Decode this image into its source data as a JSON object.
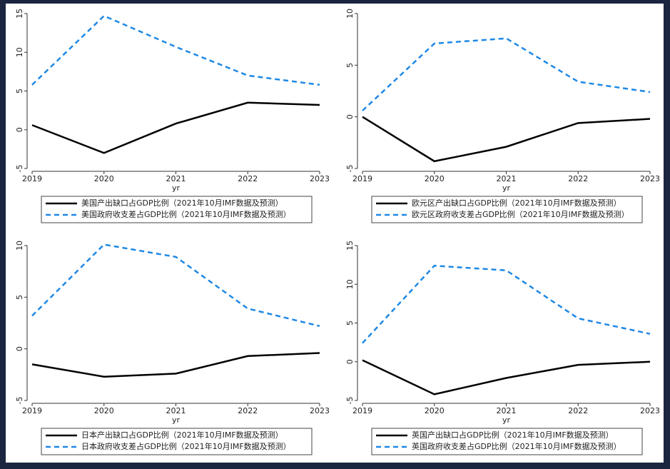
{
  "chart_data": [
    {
      "type": "line",
      "x": [
        2019,
        2020,
        2021,
        2022,
        2023
      ],
      "xlim": [
        2019,
        2023
      ],
      "xticks": [
        2019,
        2020,
        2021,
        2022,
        2023
      ],
      "xlabel": "yr",
      "ylim": [
        -5,
        15
      ],
      "yticks": [
        -5,
        0,
        5,
        10,
        15
      ],
      "series": [
        {
          "name": "美国产出缺口占GDP比例（2021年10月IMF数据及预测）",
          "color": "#000000",
          "dash": false,
          "values": [
            0.6,
            -3.0,
            0.8,
            3.5,
            3.2
          ]
        },
        {
          "name": "美国政府收支差占GDP比例（2021年10月IMF数据及预测）",
          "color": "#1e88e5",
          "dash": true,
          "values": [
            5.8,
            14.7,
            10.7,
            7.0,
            5.8
          ]
        }
      ]
    },
    {
      "type": "line",
      "x": [
        2019,
        2020,
        2021,
        2022,
        2023
      ],
      "xlim": [
        2019,
        2023
      ],
      "xticks": [
        2019,
        2020,
        2021,
        2022,
        2023
      ],
      "xlabel": "yr",
      "ylim": [
        -5,
        10
      ],
      "yticks": [
        -5,
        0,
        5,
        10
      ],
      "series": [
        {
          "name": "欧元区产出缺口占GDP比例（2021年10月IMF数据及预测）",
          "color": "#000000",
          "dash": false,
          "values": [
            0,
            -4.3,
            -2.9,
            -0.6,
            -0.2
          ]
        },
        {
          "name": "欧元区政府收支差占GDP比例（2021年10月IMF数据及预测）",
          "color": "#1e88e5",
          "dash": true,
          "values": [
            0.6,
            7.1,
            7.6,
            3.4,
            2.4
          ]
        }
      ]
    },
    {
      "type": "line",
      "x": [
        2019,
        2020,
        2021,
        2022,
        2023
      ],
      "xlim": [
        2019,
        2023
      ],
      "xticks": [
        2019,
        2020,
        2021,
        2022,
        2023
      ],
      "xlabel": "yr",
      "ylim": [
        -5,
        10
      ],
      "yticks": [
        -5,
        0,
        5,
        10
      ],
      "series": [
        {
          "name": "日本产出缺口占GDP比例（2021年10月IMF数据及预测）",
          "color": "#000000",
          "dash": false,
          "values": [
            -1.5,
            -2.7,
            -2.4,
            -0.7,
            -0.4
          ]
        },
        {
          "name": "日本政府收支差占GDP比例（2021年10月IMF数据及预测）",
          "color": "#1e88e5",
          "dash": true,
          "values": [
            3.2,
            10.1,
            8.9,
            3.9,
            2.2
          ]
        }
      ]
    },
    {
      "type": "line",
      "x": [
        2019,
        2020,
        2021,
        2022,
        2023
      ],
      "xlim": [
        2019,
        2023
      ],
      "xticks": [
        2019,
        2020,
        2021,
        2022,
        2023
      ],
      "xlabel": "yr",
      "ylim": [
        -5,
        15
      ],
      "yticks": [
        -5,
        0,
        5,
        10,
        15
      ],
      "series": [
        {
          "name": "英国产出缺口占GDP比例（2021年10月IMF数据及预测）",
          "color": "#000000",
          "dash": false,
          "values": [
            0.2,
            -4.2,
            -2.1,
            -0.4,
            0
          ]
        },
        {
          "name": "英国政府收支差占GDP比例（2021年10月IMF数据及预测）",
          "color": "#1e88e5",
          "dash": true,
          "values": [
            2.4,
            12.4,
            11.8,
            5.6,
            3.6
          ]
        }
      ]
    }
  ]
}
